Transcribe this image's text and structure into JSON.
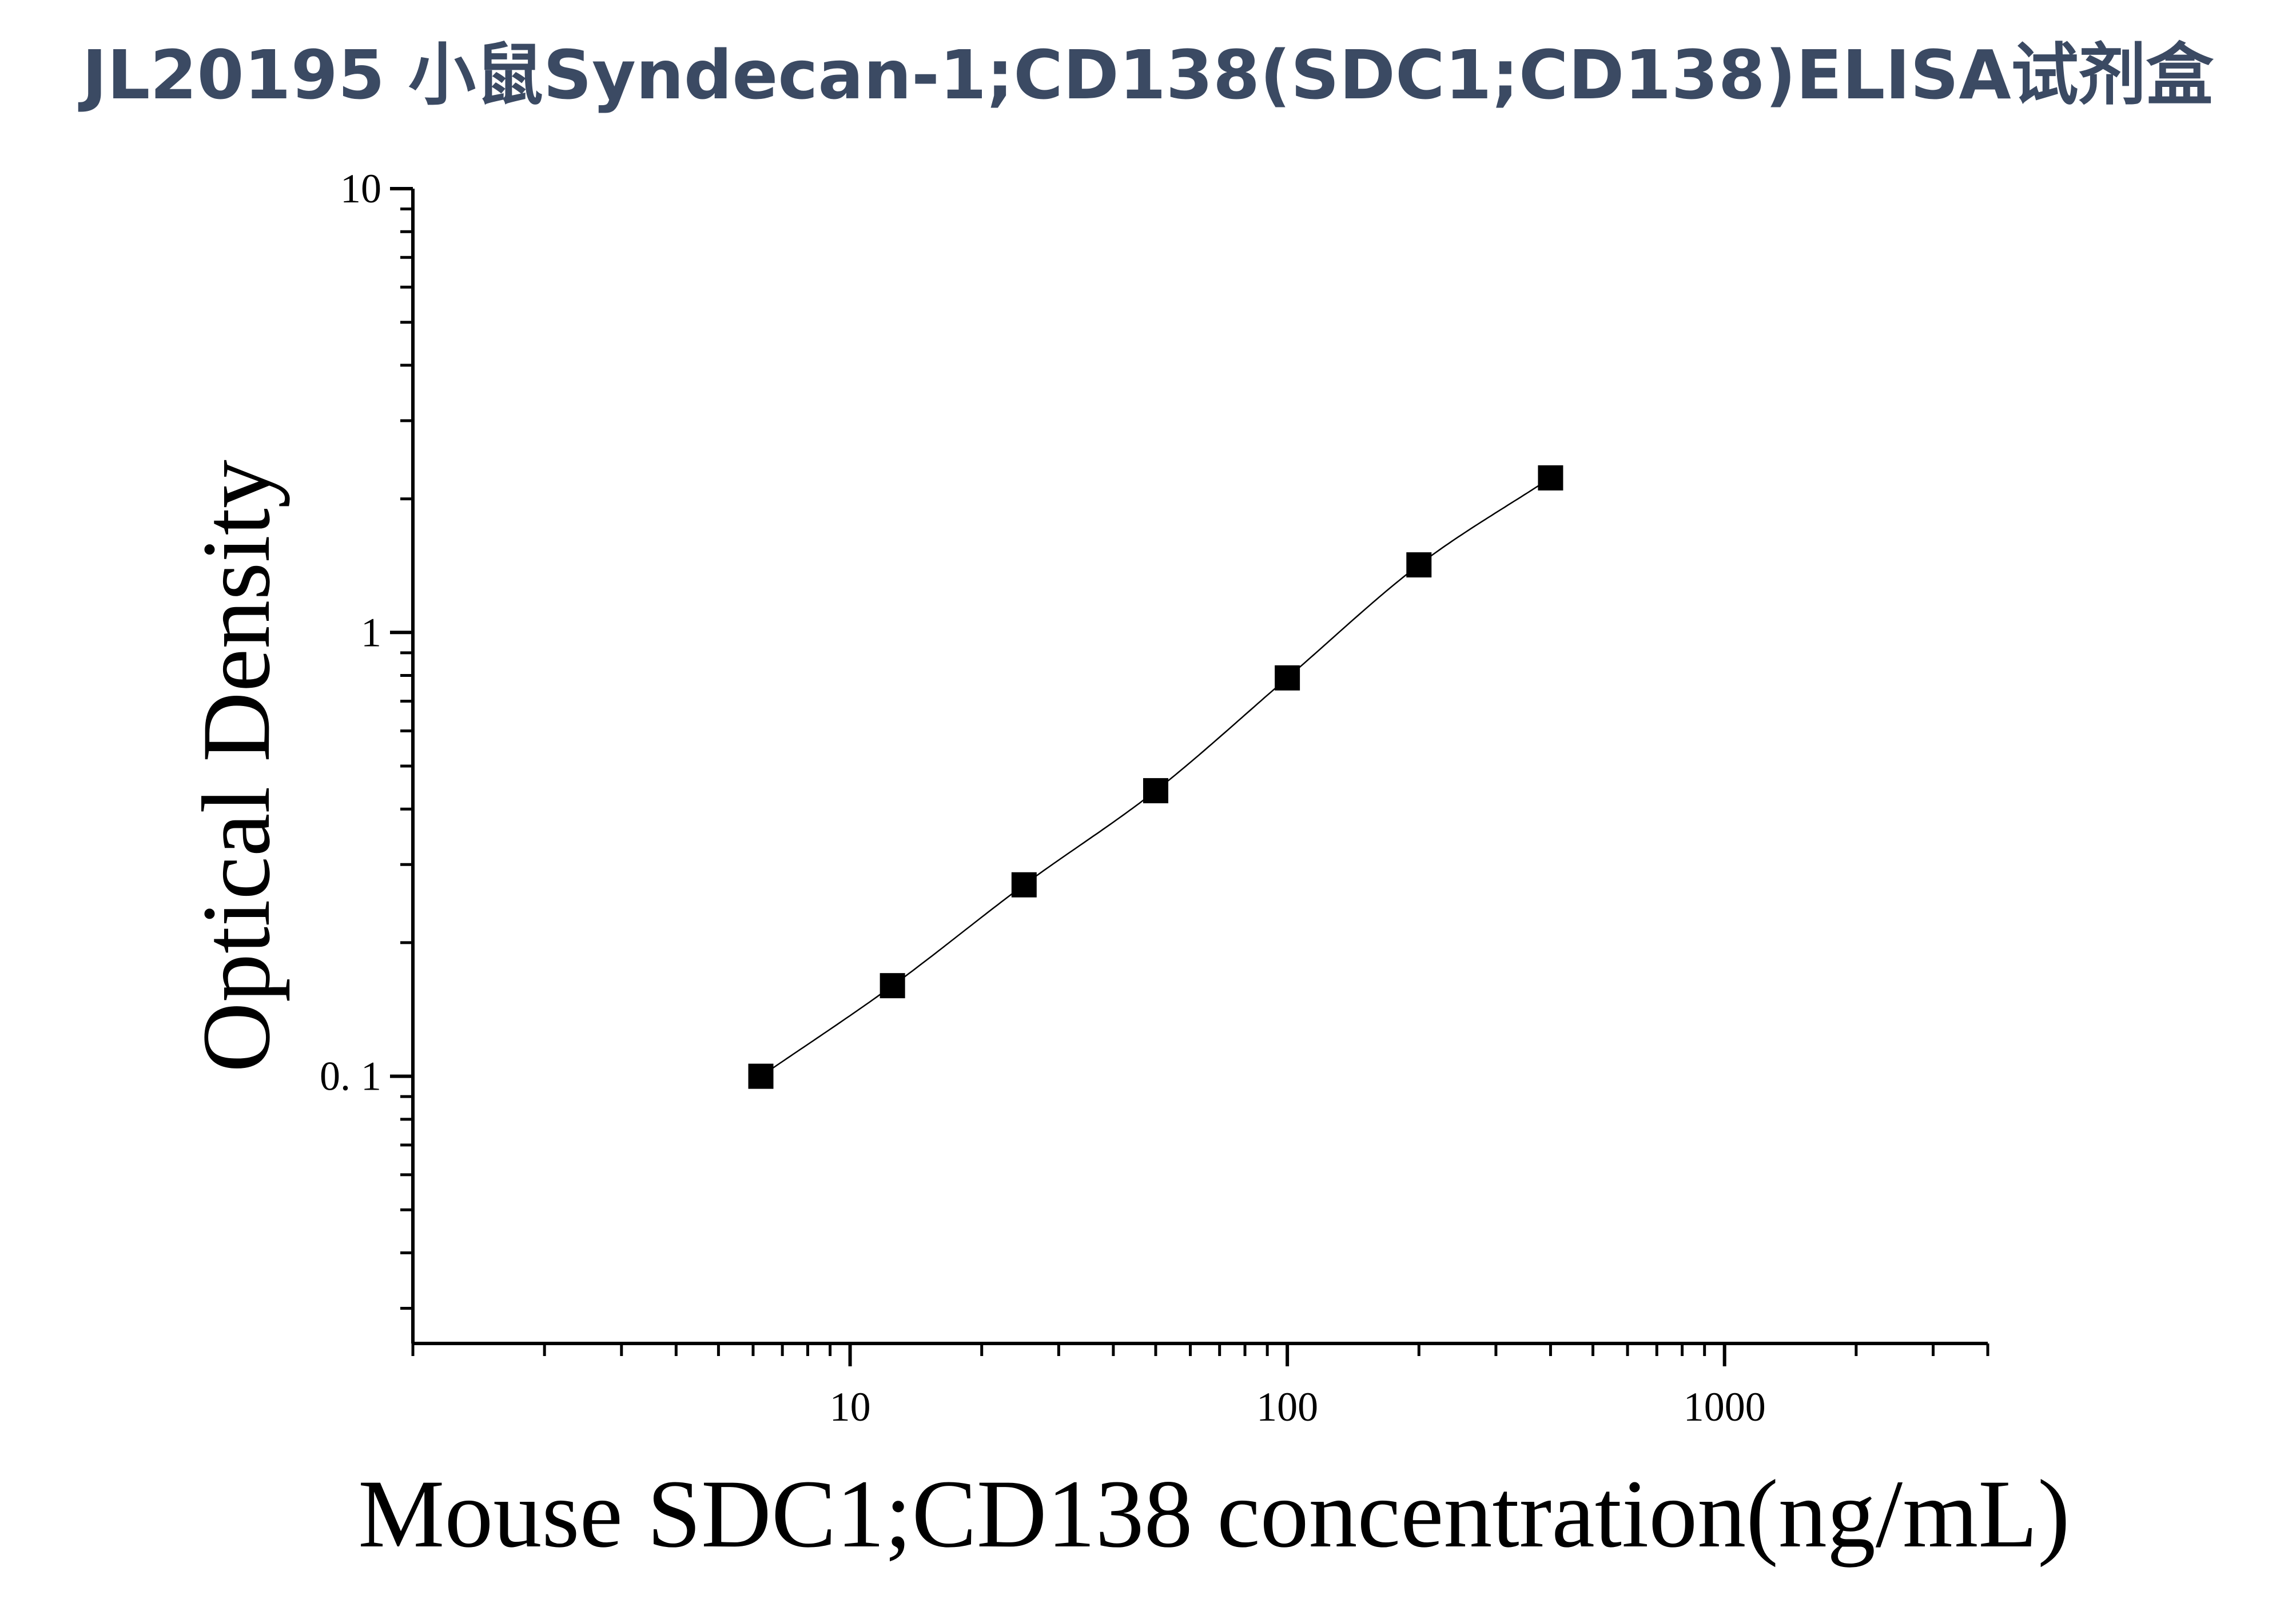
{
  "chart_data": {
    "type": "scatter",
    "title": "JL20195 小鼠Syndecan-1;CD138(SDC1;CD138)ELISA试剂盒",
    "xlabel": "Mouse SDC1;CD138 concentration(ng/mL)",
    "ylabel": "Optical Density",
    "x_scale": "log",
    "y_scale": "log",
    "xlim": [
      1,
      4000
    ],
    "ylim": [
      0.025,
      10
    ],
    "x_ticks": [
      {
        "value": 10,
        "label": "10"
      },
      {
        "value": 100,
        "label": "100"
      },
      {
        "value": 1000,
        "label": "1000"
      }
    ],
    "y_ticks": [
      {
        "value": 10,
        "label": "10"
      },
      {
        "value": 1,
        "label": "1"
      },
      {
        "value": 0.1,
        "label": "0. 1"
      }
    ],
    "grid": false,
    "legend": "none",
    "series": [
      {
        "x": [
          6.25,
          12.5,
          25,
          50,
          100,
          200,
          400
        ],
        "y": [
          0.1,
          0.16,
          0.27,
          0.44,
          0.79,
          1.42,
          2.23
        ],
        "marker": "square",
        "fit_curve": true
      }
    ],
    "colors": {
      "title": "#3b4a63",
      "axis": "#000000",
      "marker": "#000000",
      "curve": "#000000"
    }
  }
}
